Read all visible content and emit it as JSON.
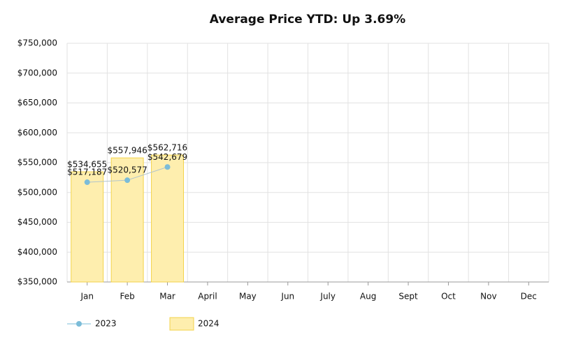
{
  "chart_data": {
    "type": "combo",
    "title": "Average Price YTD: Up 3.69%",
    "categories": [
      "Jan",
      "Feb",
      "Mar",
      "April",
      "May",
      "Jun",
      "July",
      "Aug",
      "Sept",
      "Oct",
      "Nov",
      "Dec"
    ],
    "series": [
      {
        "name": "2023",
        "type": "line",
        "color": "#7bbcd8",
        "values": [
          517187,
          520577,
          542679,
          null,
          null,
          null,
          null,
          null,
          null,
          null,
          null,
          null
        ],
        "value_labels": [
          "$517,187",
          "$520,577",
          "$542,679",
          null,
          null,
          null,
          null,
          null,
          null,
          null,
          null,
          null
        ]
      },
      {
        "name": "2024",
        "type": "bar",
        "color": "#feeeae",
        "values": [
          534655,
          557946,
          562716,
          null,
          null,
          null,
          null,
          null,
          null,
          null,
          null,
          null
        ],
        "value_labels": [
          "$534,655",
          "$557,946",
          "$562,716",
          null,
          null,
          null,
          null,
          null,
          null,
          null,
          null,
          null
        ]
      }
    ],
    "ylim": [
      350000,
      750000
    ],
    "yticks": [
      {
        "value": 350000,
        "label": "$350,000"
      },
      {
        "value": 400000,
        "label": "$400,000"
      },
      {
        "value": 450000,
        "label": "$450,000"
      },
      {
        "value": 500000,
        "label": "$500,000"
      },
      {
        "value": 550000,
        "label": "$550,000"
      },
      {
        "value": 600000,
        "label": "$600,000"
      },
      {
        "value": 650000,
        "label": "$650,000"
      },
      {
        "value": 700000,
        "label": "$700,000"
      },
      {
        "value": 750000,
        "label": "$750,000"
      }
    ],
    "grid": true,
    "legend": "bottom-left"
  }
}
